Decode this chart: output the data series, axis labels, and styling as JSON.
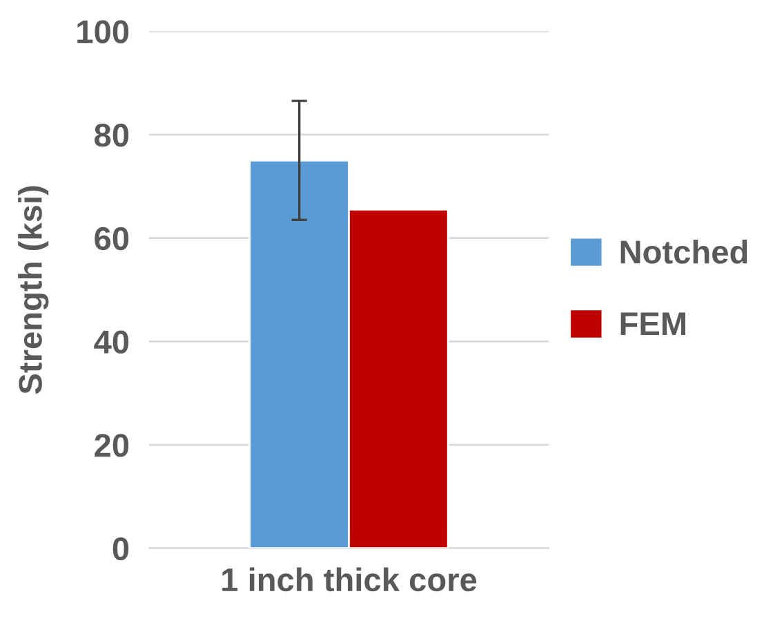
{
  "chart_data": {
    "type": "bar",
    "ylabel": "Strength (ksi)",
    "categories": [
      "1 inch thick core"
    ],
    "series": [
      {
        "name": "Notched",
        "color": "#5b9bd5",
        "values": [
          75
        ],
        "errors": [
          11.5
        ]
      },
      {
        "name": "FEM",
        "color": "#c00000",
        "values": [
          65.5
        ]
      }
    ],
    "ylim": [
      0,
      100
    ],
    "yticks": [
      0,
      20,
      40,
      60,
      80,
      100
    ],
    "grid": "y",
    "legend": "right"
  }
}
